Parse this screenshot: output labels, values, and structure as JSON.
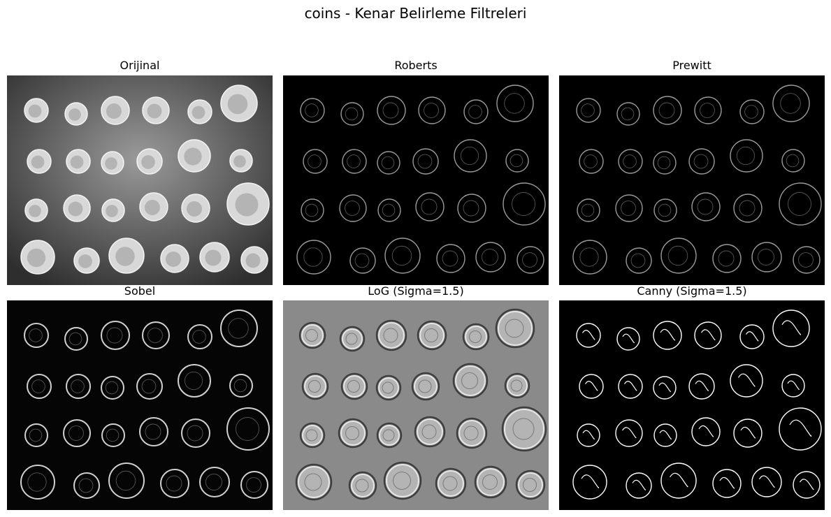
{
  "figure": {
    "title": "coins - Kenar Belirleme Filtreleri"
  },
  "panels": [
    {
      "title": "Orijinal",
      "style": "original",
      "bg": "#3a3a3a"
    },
    {
      "title": "Roberts",
      "style": "edge",
      "bg": "#000000"
    },
    {
      "title": "Prewitt",
      "style": "edge",
      "bg": "#000000"
    },
    {
      "title": "Sobel",
      "style": "edge-bright",
      "bg": "#050505"
    },
    {
      "title": "LoG (Sigma=1.5)",
      "style": "log",
      "bg": "#8a8a8a"
    },
    {
      "title": "Canny (Sigma=1.5)",
      "style": "canny",
      "bg": "#000000"
    }
  ]
}
